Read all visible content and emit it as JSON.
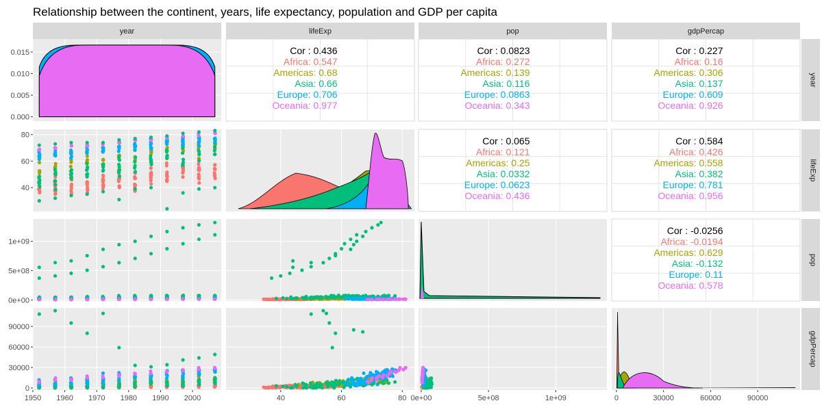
{
  "title": "Relationship between the continent, years, life expectancy, population and GDP per capita",
  "colors": {
    "panel_bg": "#ebebeb",
    "strip_bg": "#d9d9d9",
    "grid": "#ffffff",
    "Africa": "#f8766d",
    "Americas": "#a3a500",
    "Asia": "#00bf7d",
    "Europe": "#00b0f6",
    "Oceania": "#e76bf3"
  },
  "chart_data": {
    "type": "scatter",
    "variables": [
      "year",
      "lifeExp",
      "pop",
      "gdpPercap"
    ],
    "continents": [
      "Africa",
      "Americas",
      "Asia",
      "Europe",
      "Oceania"
    ],
    "axes": {
      "year": {
        "range": [
          1950,
          2009
        ],
        "ticks": [
          1950,
          1960,
          1970,
          1980,
          1990,
          2000
        ],
        "tick_labels": [
          "1950",
          "1960",
          "1970",
          "1980",
          "1990",
          "2000"
        ]
      },
      "lifeExp": {
        "range": [
          22,
          84
        ],
        "ticks": [
          40,
          60,
          80
        ],
        "tick_labels": [
          "40",
          "60",
          "80"
        ]
      },
      "pop": {
        "range": [
          -20000000.0,
          1380000000.0
        ],
        "ticks": [
          0,
          500000000,
          1000000000
        ],
        "tick_labels": [
          "0e+00",
          "5e+08",
          "1e+09"
        ]
      },
      "gdpPercap": {
        "range": [
          -3000,
          117000
        ],
        "ticks": [
          0,
          30000,
          60000,
          90000
        ],
        "tick_labels": [
          "0",
          "30000",
          "60000",
          "90000"
        ]
      }
    },
    "year_density_axis": {
      "range": [
        -0.001,
        0.018
      ],
      "ticks": [
        0,
        0.005,
        0.01,
        0.015
      ],
      "tick_labels": [
        "0.000",
        "0.005",
        "0.010",
        "0.015"
      ]
    },
    "correlations": [
      {
        "row": "year",
        "col": "lifeExp",
        "overall": "Cor : 0.436",
        "groups": [
          "Africa: 0.547",
          "Americas: 0.68",
          "Asia: 0.66",
          "Europe: 0.706",
          "Oceania: 0.977"
        ]
      },
      {
        "row": "year",
        "col": "pop",
        "overall": "Cor : 0.0823",
        "groups": [
          "Africa: 0.272",
          "Americas: 0.139",
          "Asia: 0.116",
          "Europe: 0.0863",
          "Oceania: 0.343"
        ]
      },
      {
        "row": "year",
        "col": "gdpPercap",
        "overall": "Cor : 0.227",
        "groups": [
          "Africa: 0.16",
          "Americas: 0.306",
          "Asia: 0.137",
          "Europe: 0.609",
          "Oceania: 0.926"
        ]
      },
      {
        "row": "lifeExp",
        "col": "pop",
        "overall": "Cor : 0.065",
        "groups": [
          "Africa: 0.121",
          "Americas: 0.25",
          "Asia: 0.0332",
          "Europe: 0.0623",
          "Oceania: 0.436"
        ]
      },
      {
        "row": "lifeExp",
        "col": "gdpPercap",
        "overall": "Cor : 0.584",
        "groups": [
          "Africa: 0.426",
          "Americas: 0.558",
          "Asia: 0.382",
          "Europe: 0.781",
          "Oceania: 0.956"
        ]
      },
      {
        "row": "pop",
        "col": "gdpPercap",
        "overall": "Cor : -0.0256",
        "groups": [
          "Africa: -0.0194",
          "Americas: 0.629",
          "Asia: -0.132",
          "Europe: 0.11",
          "Oceania: 0.578"
        ]
      }
    ],
    "scatter_points": {
      "year_lifeExp": [
        [
          1952,
          30
        ],
        [
          1952,
          72
        ],
        [
          1957,
          32
        ],
        [
          1957,
          73
        ],
        [
          1962,
          34
        ],
        [
          1962,
          74
        ],
        [
          1967,
          35
        ],
        [
          1967,
          74
        ],
        [
          1972,
          37
        ],
        [
          1972,
          74
        ],
        [
          1977,
          31
        ],
        [
          1977,
          76
        ],
        [
          1982,
          39
        ],
        [
          1982,
          77
        ],
        [
          1987,
          40
        ],
        [
          1987,
          78
        ],
        [
          1992,
          24
        ],
        [
          1992,
          79
        ],
        [
          1997,
          36
        ],
        [
          1997,
          81
        ],
        [
          2002,
          39
        ],
        [
          2002,
          82
        ],
        [
          2007,
          40
        ],
        [
          2007,
          83
        ]
      ],
      "year_pop": [
        [
          1952,
          556000000
        ],
        [
          1952,
          372000000
        ],
        [
          1957,
          637000000
        ],
        [
          1957,
          409000000
        ],
        [
          1962,
          666000000
        ],
        [
          1962,
          454000000
        ],
        [
          1967,
          755000000
        ],
        [
          1967,
          506000000
        ],
        [
          1972,
          862000000
        ],
        [
          1972,
          567000000
        ],
        [
          1977,
          943000000
        ],
        [
          1977,
          634000000
        ],
        [
          1982,
          1000000000
        ],
        [
          1982,
          708000000
        ],
        [
          1987,
          1084000000
        ],
        [
          1987,
          788000000
        ],
        [
          1992,
          1165000000
        ],
        [
          1992,
          872000000
        ],
        [
          1997,
          1230000000
        ],
        [
          1997,
          959000000
        ],
        [
          2002,
          1280000000
        ],
        [
          2002,
          1034000000
        ],
        [
          2007,
          1319000000
        ],
        [
          2007,
          1110000000
        ]
      ],
      "year_gdpPercap": [
        [
          1952,
          108000
        ],
        [
          1957,
          113000
        ],
        [
          1962,
          95000
        ],
        [
          1967,
          80000
        ],
        [
          1972,
          109000
        ],
        [
          1977,
          59000
        ],
        [
          1982,
          33000
        ],
        [
          1987,
          31000
        ],
        [
          1992,
          34000
        ],
        [
          1997,
          41000
        ],
        [
          2002,
          44000
        ],
        [
          2007,
          49000
        ]
      ],
      "lifeExp_pop": [
        [
          44,
          556000000
        ],
        [
          50,
          637000000
        ],
        [
          44,
          666000000
        ],
        [
          58,
          755000000
        ],
        [
          63,
          862000000
        ],
        [
          64,
          943000000
        ],
        [
          65,
          1000000000
        ],
        [
          67,
          1084000000
        ],
        [
          68,
          1165000000
        ],
        [
          70,
          1230000000
        ],
        [
          72,
          1280000000
        ],
        [
          73,
          1319000000
        ],
        [
          37,
          372000000
        ],
        [
          40,
          409000000
        ],
        [
          43,
          454000000
        ],
        [
          47,
          506000000
        ],
        [
          50,
          567000000
        ],
        [
          54,
          634000000
        ],
        [
          56,
          708000000
        ],
        [
          58,
          788000000
        ],
        [
          60,
          872000000
        ],
        [
          61,
          959000000
        ],
        [
          63,
          1034000000
        ],
        [
          65,
          1110000000
        ]
      ],
      "lifeExp_gdpPercap": [
        [
          50,
          108000
        ],
        [
          54,
          113000
        ],
        [
          56,
          95000
        ],
        [
          58,
          80000
        ],
        [
          55,
          109000
        ],
        [
          57,
          59000
        ],
        [
          64,
          85000
        ],
        [
          67,
          82000
        ]
      ]
    },
    "diag_distributions": [
      {
        "variable": "year",
        "shape": "flat density across 1952-2007 for each continent, stacked layers nearly identical"
      },
      {
        "variable": "lifeExp",
        "shape": "Africa peaks near 45, Asia near 70, Europe and Oceania near 72-78"
      },
      {
        "variable": "pop",
        "shape": "all continents concentrated near 0 with long right tail"
      },
      {
        "variable": "gdpPercap",
        "shape": "Africa spike near 1000, Americas near 5000, Europe/Oceania near 17000"
      }
    ]
  }
}
